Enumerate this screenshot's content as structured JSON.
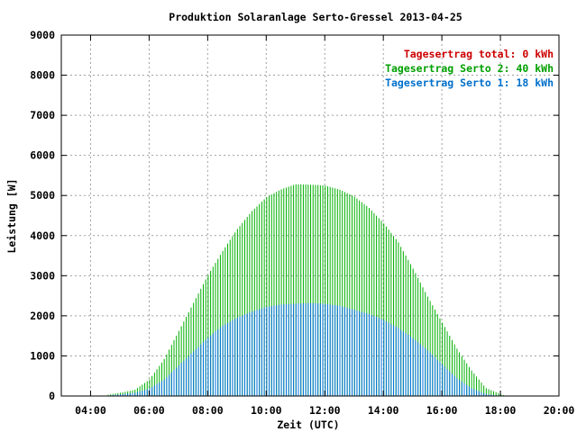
{
  "chart_data": {
    "type": "bar",
    "title": "Produktion Solaranlage Serto-Gressel 2013-04-25",
    "xlabel": "Zeit (UTC)",
    "ylabel": "Leistung [W]",
    "xlim": [
      3.0,
      20.0
    ],
    "ylim": [
      0,
      9000
    ],
    "x_ticks": [
      "04:00",
      "06:00",
      "08:00",
      "10:00",
      "12:00",
      "14:00",
      "16:00",
      "18:00",
      "20:00"
    ],
    "y_ticks": [
      "0",
      "1000",
      "2000",
      "3000",
      "4000",
      "5000",
      "6000",
      "7000",
      "8000",
      "9000"
    ],
    "grid": true,
    "legend_position": "top-right",
    "legend": [
      {
        "text": "Tagesertrag total: 0 kWh",
        "color": "#cc0000"
      },
      {
        "text": "Tagesertrag Serto 2: 40 kWh",
        "color": "#00a000"
      },
      {
        "text": "Tagesertrag Serto 1: 18 kWh",
        "color": "#0070cc"
      }
    ],
    "series": [
      {
        "color": "#00b000",
        "points": [
          [
            4.6,
            30
          ],
          [
            5.0,
            80
          ],
          [
            5.5,
            150
          ],
          [
            6.0,
            400
          ],
          [
            6.5,
            900
          ],
          [
            7.0,
            1600
          ],
          [
            7.5,
            2300
          ],
          [
            8.0,
            3000
          ],
          [
            8.5,
            3600
          ],
          [
            9.0,
            4150
          ],
          [
            9.5,
            4600
          ],
          [
            10.0,
            4950
          ],
          [
            10.5,
            5150
          ],
          [
            11.0,
            5280
          ],
          [
            11.5,
            5270
          ],
          [
            12.0,
            5250
          ],
          [
            12.5,
            5150
          ],
          [
            13.0,
            4980
          ],
          [
            13.5,
            4700
          ],
          [
            14.0,
            4320
          ],
          [
            14.5,
            3850
          ],
          [
            15.0,
            3200
          ],
          [
            15.5,
            2500
          ],
          [
            16.0,
            1850
          ],
          [
            16.5,
            1200
          ],
          [
            17.0,
            650
          ],
          [
            17.5,
            200
          ],
          [
            18.0,
            50
          ],
          [
            18.2,
            0
          ]
        ]
      },
      {
        "color": "#0070e0",
        "points": [
          [
            4.6,
            10
          ],
          [
            5.0,
            40
          ],
          [
            5.5,
            80
          ],
          [
            6.0,
            180
          ],
          [
            6.5,
            400
          ],
          [
            7.0,
            750
          ],
          [
            7.5,
            1100
          ],
          [
            8.0,
            1450
          ],
          [
            8.5,
            1750
          ],
          [
            9.0,
            1950
          ],
          [
            9.5,
            2100
          ],
          [
            10.0,
            2220
          ],
          [
            10.5,
            2280
          ],
          [
            11.0,
            2300
          ],
          [
            11.5,
            2320
          ],
          [
            12.0,
            2300
          ],
          [
            12.5,
            2250
          ],
          [
            13.0,
            2150
          ],
          [
            13.5,
            2050
          ],
          [
            14.0,
            1900
          ],
          [
            14.5,
            1700
          ],
          [
            15.0,
            1450
          ],
          [
            15.5,
            1150
          ],
          [
            16.0,
            800
          ],
          [
            16.5,
            450
          ],
          [
            17.0,
            200
          ],
          [
            17.5,
            50
          ],
          [
            18.0,
            0
          ]
        ]
      }
    ]
  }
}
